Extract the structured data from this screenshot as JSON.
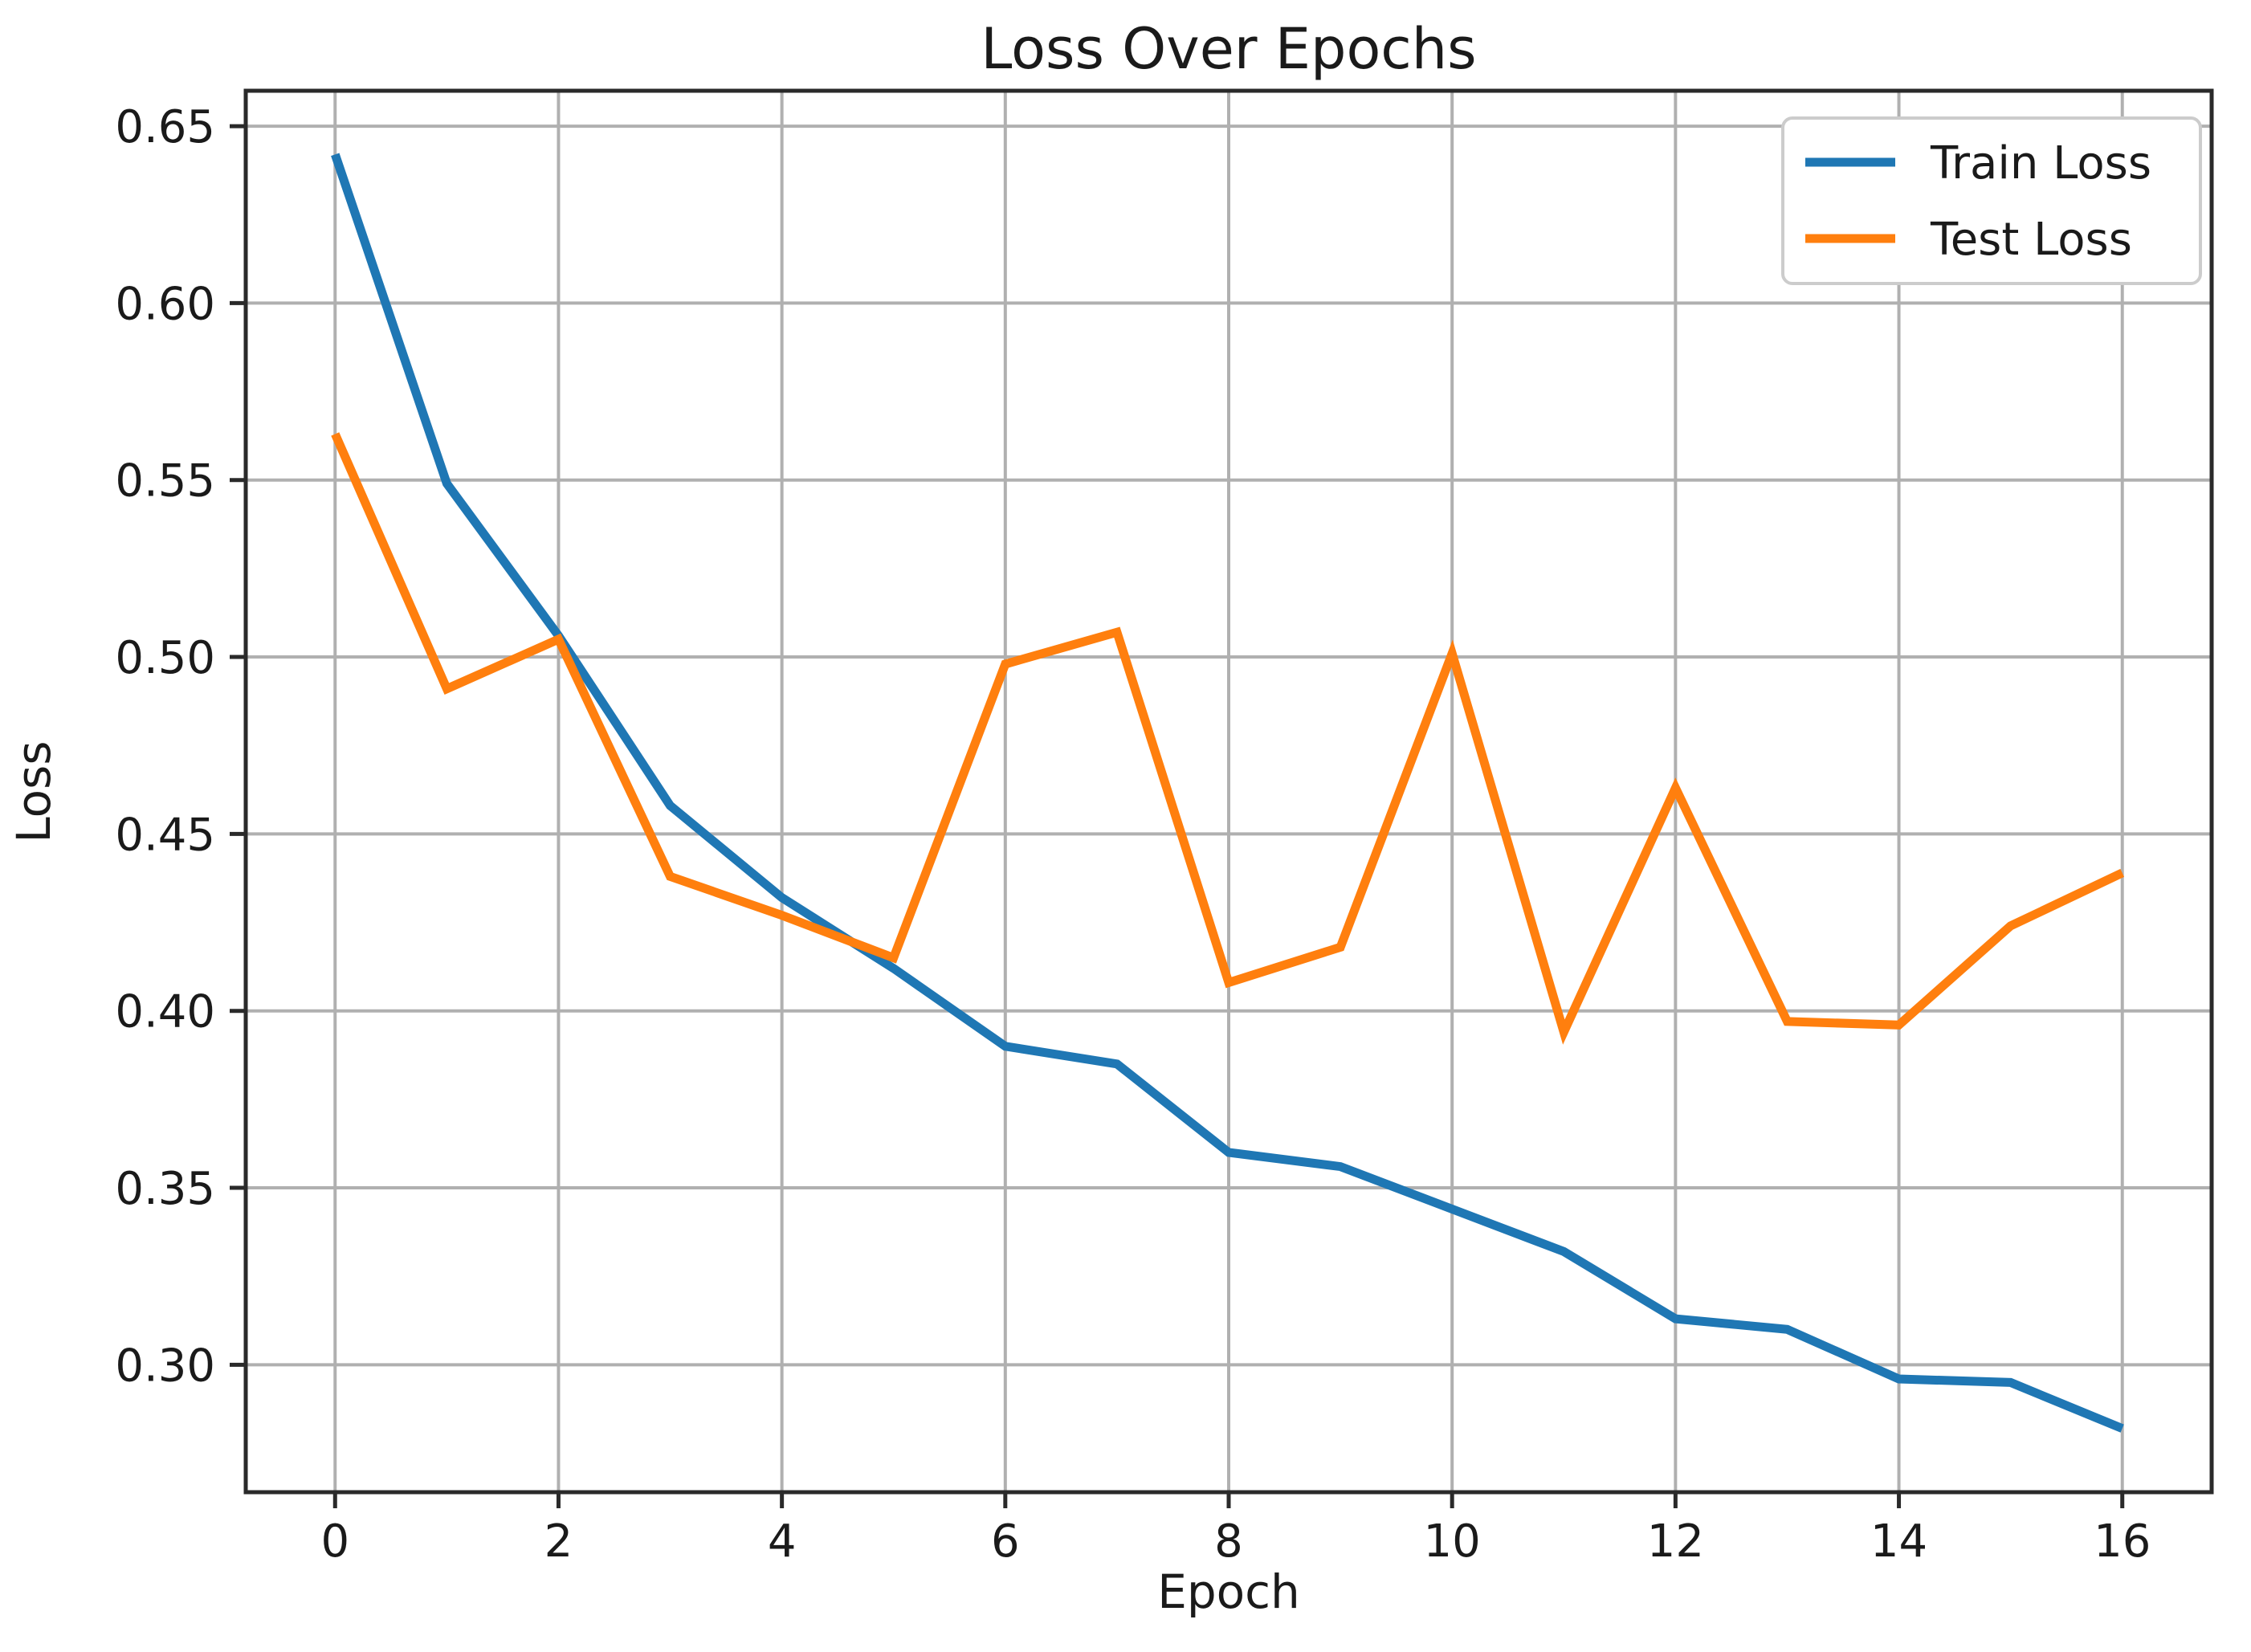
{
  "figure": {
    "title": "Loss Over Epochs",
    "xlabel": "Epoch",
    "ylabel": "Loss",
    "background_color": "#ffffff",
    "grid_color": "#b0b0b0",
    "spine_color": "#2a2a2a",
    "text_color": "#1a1a1a"
  },
  "legend": {
    "position": "upper right",
    "items": [
      {
        "label": "Train Loss",
        "color": "#1f77b4"
      },
      {
        "label": "Test Loss",
        "color": "#ff7f0e"
      }
    ]
  },
  "chart_data": {
    "type": "line",
    "title": "Loss Over Epochs",
    "xlabel": "Epoch",
    "ylabel": "Loss",
    "grid": true,
    "legend_position": "upper right",
    "x": [
      0,
      1,
      2,
      3,
      4,
      5,
      6,
      7,
      8,
      9,
      10,
      11,
      12,
      13,
      14,
      15,
      16
    ],
    "series": [
      {
        "name": "Train Loss",
        "color": "#1f77b4",
        "values": [
          0.642,
          0.549,
          0.506,
          0.458,
          0.432,
          0.412,
          0.39,
          0.385,
          0.36,
          0.356,
          0.344,
          0.332,
          0.313,
          0.31,
          0.296,
          0.295,
          0.282
        ]
      },
      {
        "name": "Test Loss",
        "color": "#ff7f0e",
        "values": [
          0.563,
          0.491,
          0.505,
          0.438,
          0.427,
          0.415,
          0.498,
          0.507,
          0.408,
          0.418,
          0.501,
          0.394,
          0.463,
          0.397,
          0.396,
          0.424,
          0.439
        ]
      }
    ],
    "xlim": [
      -0.8,
      16.8
    ],
    "ylim": [
      0.264,
      0.66
    ],
    "xticks": [
      0,
      2,
      4,
      6,
      8,
      10,
      12,
      14,
      16
    ],
    "xtick_labels": [
      "0",
      "2",
      "4",
      "6",
      "8",
      "10",
      "12",
      "14",
      "16"
    ],
    "yticks": [
      0.3,
      0.35,
      0.4,
      0.45,
      0.5,
      0.55,
      0.6,
      0.65
    ],
    "ytick_labels": [
      "0.30",
      "0.35",
      "0.40",
      "0.45",
      "0.50",
      "0.55",
      "0.60",
      "0.65"
    ]
  }
}
